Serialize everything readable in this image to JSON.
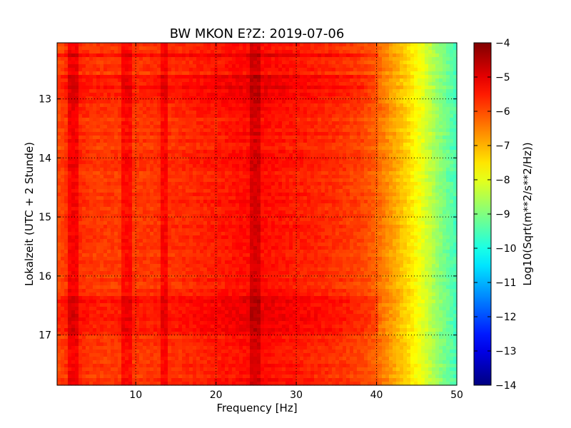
{
  "chart_data": {
    "type": "heatmap",
    "title": "BW MKON E?Z: 2019-07-06",
    "xlabel": "Frequency [Hz]",
    "ylabel": "Lokalzeit (UTC + 2 Stunde)",
    "xlim": [
      0.2,
      50
    ],
    "ylim": [
      17.85,
      12.05
    ],
    "y_inverted": true,
    "grid": true,
    "x_ticks": [
      10,
      20,
      30,
      40,
      50
    ],
    "x_tick_labels": [
      "10",
      "20",
      "30",
      "40",
      "50"
    ],
    "y_ticks": [
      13,
      14,
      15,
      16,
      17
    ],
    "y_tick_labels": [
      "13",
      "14",
      "15",
      "16",
      "17"
    ],
    "colorbar": {
      "label": "Log10(Sqrt(m**2/s**2/Hz))",
      "range": [
        -14,
        -4
      ],
      "ticks": [
        -4,
        -5,
        -6,
        -7,
        -8,
        -9,
        -10,
        -11,
        -12,
        -13,
        -14
      ],
      "tick_labels": [
        "−4",
        "−5",
        "−6",
        "−7",
        "−8",
        "−9",
        "−10",
        "−11",
        "−12",
        "−13",
        "−14"
      ],
      "colormap": "jet"
    },
    "spectral_profile": {
      "frequency_hz": [
        0.2,
        2,
        5,
        10,
        15,
        20,
        25,
        30,
        35,
        38,
        40,
        42,
        44,
        46,
        48,
        50
      ],
      "log10_amplitude": [
        -6.0,
        -5.6,
        -5.8,
        -5.8,
        -5.7,
        -5.5,
        -5.3,
        -5.5,
        -5.7,
        -5.9,
        -6.2,
        -6.8,
        -7.4,
        -8.1,
        -8.9,
        -9.6
      ]
    },
    "lines_hz": [
      2.2,
      9,
      13.5,
      25
    ],
    "active_hours": [
      [
        12.25,
        12.3
      ],
      [
        12.6,
        13.1
      ],
      [
        16.35,
        17.0
      ]
    ]
  }
}
